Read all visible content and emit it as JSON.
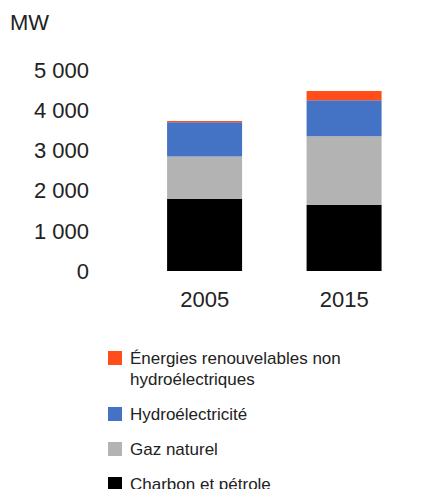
{
  "chart_data": {
    "type": "bar",
    "stacked": true,
    "y_label": "MW",
    "categories": [
      "2005",
      "2015"
    ],
    "series": [
      {
        "name": "Charbon et pétrole",
        "color": "#000000",
        "values": [
          1800,
          1650
        ]
      },
      {
        "name": "Gaz naturel",
        "color": "#b3b3b3",
        "values": [
          1050,
          1700
        ]
      },
      {
        "name": "Hydroélectricité",
        "color": "#4472c4",
        "values": [
          850,
          900
        ]
      },
      {
        "name": "Énergies renouvelables non hydroélectriques",
        "color": "#ff4e1a",
        "values": [
          30,
          230
        ]
      }
    ],
    "ylim": [
      0,
      5000
    ],
    "yticks": [
      0,
      {
        "value": 1000,
        "label": "1 000"
      },
      {
        "value": 2000,
        "label": "2 000"
      },
      {
        "value": 3000,
        "label": "3 000"
      },
      {
        "value": 4000,
        "label": "4 000"
      },
      {
        "value": 5000,
        "label": "5 000"
      }
    ],
    "grid": false,
    "legend": "bottom"
  }
}
